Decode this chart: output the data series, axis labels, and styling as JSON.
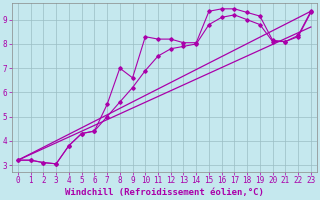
{
  "xlabel": "Windchill (Refroidissement éolien,°C)",
  "xlim": [
    -0.5,
    23.5
  ],
  "ylim": [
    2.7,
    9.7
  ],
  "yticks": [
    3,
    4,
    5,
    6,
    7,
    8,
    9
  ],
  "xticks": [
    0,
    1,
    2,
    3,
    4,
    5,
    6,
    7,
    8,
    9,
    10,
    11,
    12,
    13,
    14,
    15,
    16,
    17,
    18,
    19,
    20,
    21,
    22,
    23
  ],
  "bg_color": "#c5e8ee",
  "grid_color": "#9bbec4",
  "line_color": "#aa00aa",
  "line1_x": [
    0,
    1,
    2,
    3,
    4,
    5,
    6,
    7,
    8,
    9,
    10,
    11,
    12,
    13,
    14,
    15,
    16,
    17,
    18,
    19,
    20,
    21,
    22,
    23
  ],
  "line1_y": [
    3.2,
    3.2,
    3.1,
    3.05,
    3.8,
    4.3,
    4.4,
    5.5,
    7.0,
    6.6,
    8.3,
    8.2,
    8.2,
    8.05,
    8.05,
    9.35,
    9.45,
    9.45,
    9.3,
    9.15,
    8.15,
    8.1,
    8.35,
    9.35
  ],
  "line2_x": [
    0,
    1,
    2,
    3,
    4,
    5,
    6,
    7,
    8,
    9,
    10,
    11,
    12,
    13,
    14,
    15,
    16,
    17,
    18,
    19,
    20,
    21,
    22,
    23
  ],
  "line2_y": [
    3.2,
    3.2,
    3.1,
    3.05,
    3.8,
    4.3,
    4.4,
    5.0,
    5.6,
    6.2,
    6.9,
    7.5,
    7.8,
    7.9,
    8.0,
    8.8,
    9.1,
    9.2,
    9.0,
    8.8,
    8.1,
    8.1,
    8.3,
    9.3
  ],
  "line3_x": [
    0,
    23
  ],
  "line3_y": [
    3.2,
    9.35
  ],
  "line4_x": [
    0,
    23
  ],
  "line4_y": [
    3.2,
    8.7
  ],
  "font_family": "monospace",
  "xlabel_fontsize": 6.5,
  "tick_fontsize": 5.5
}
